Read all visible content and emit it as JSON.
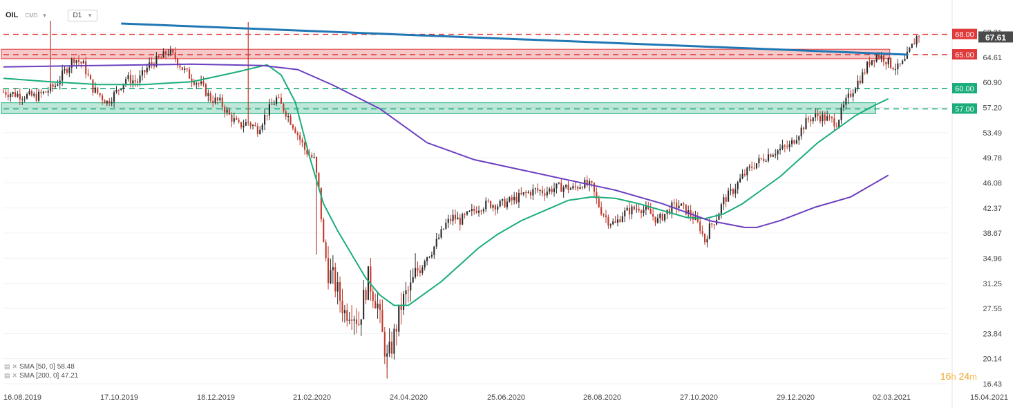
{
  "header": {
    "symbol": "OIL",
    "instrument_type": "CMD",
    "timeframe": "D1"
  },
  "indicators": [
    {
      "label": "SMA [50, 0]",
      "value": "58.48",
      "color": "#1aad7a"
    },
    {
      "label": "SMA [200, 0]",
      "value": "47.21",
      "color": "#6a3fbf"
    }
  ],
  "timer": {
    "hours": "16",
    "h_unit": "h",
    "minutes": "24",
    "m_unit": "m"
  },
  "chart_data": {
    "type": "candlestick",
    "x_tick_labels": [
      "16.08.2019",
      "17.10.2019",
      "18.12.2019",
      "21.02.2020",
      "24.04.2020",
      "25.06.2020",
      "26.08.2020",
      "27.10.2020",
      "29.12.2020",
      "02.03.2021",
      "15.04.2021"
    ],
    "y_tick_labels": [
      "68.31",
      "64.61",
      "60.90",
      "57.20",
      "53.49",
      "49.78",
      "46.08",
      "42.37",
      "38.67",
      "34.96",
      "31.25",
      "27.55",
      "23.84",
      "20.14",
      "16.43"
    ],
    "ylim": [
      16.43,
      69.8
    ],
    "last_price": "67.61",
    "last_price_value": 67.61,
    "price_path": [
      [
        0,
        59.5
      ],
      [
        8,
        59.0
      ],
      [
        14,
        58.8
      ],
      [
        18,
        59.5
      ],
      [
        22,
        60.5
      ],
      [
        26,
        62.5
      ],
      [
        30,
        64.5
      ],
      [
        34,
        63.5
      ],
      [
        38,
        60.0
      ],
      [
        44,
        58.0
      ],
      [
        48,
        59.5
      ],
      [
        52,
        61.5
      ],
      [
        57,
        61.0
      ],
      [
        62,
        63.5
      ],
      [
        67,
        64.5
      ],
      [
        70,
        65.5
      ],
      [
        73,
        64.5
      ],
      [
        76,
        63.0
      ],
      [
        80,
        61.5
      ],
      [
        84,
        60.5
      ],
      [
        88,
        58.5
      ],
      [
        92,
        58.0
      ],
      [
        96,
        56.0
      ],
      [
        100,
        54.5
      ],
      [
        104,
        55.0
      ],
      [
        108,
        54.0
      ],
      [
        112,
        56.5
      ],
      [
        116,
        58.5
      ],
      [
        120,
        56.5
      ],
      [
        124,
        54.0
      ],
      [
        128,
        51.0
      ],
      [
        132,
        49.5
      ],
      [
        134,
        45.0
      ],
      [
        136,
        37.0
      ],
      [
        138,
        33.0
      ],
      [
        140,
        32.0
      ],
      [
        143,
        29.0
      ],
      [
        145,
        27.0
      ],
      [
        148,
        27.5
      ],
      [
        151,
        25.5
      ],
      [
        153,
        29.0
      ],
      [
        155,
        32.0
      ],
      [
        157,
        30.0
      ],
      [
        159,
        28.0
      ],
      [
        161,
        23.5
      ],
      [
        163,
        20.0
      ],
      [
        165,
        22.0
      ],
      [
        167,
        25.0
      ],
      [
        169,
        28.0
      ],
      [
        171,
        29.5
      ],
      [
        173,
        30.5
      ],
      [
        175,
        32.5
      ],
      [
        177,
        34.0
      ],
      [
        179,
        35.0
      ],
      [
        182,
        36.0
      ],
      [
        185,
        38.0
      ],
      [
        188,
        40.0
      ],
      [
        191,
        41.0
      ],
      [
        194,
        40.5
      ],
      [
        198,
        41.5
      ],
      [
        202,
        42.5
      ],
      [
        206,
        43.0
      ],
      [
        210,
        42.8
      ],
      [
        214,
        43.2
      ],
      [
        218,
        43.8
      ],
      [
        222,
        44.5
      ],
      [
        226,
        45.0
      ],
      [
        230,
        44.8
      ],
      [
        234,
        45.3
      ],
      [
        238,
        45.5
      ],
      [
        242,
        45.2
      ],
      [
        246,
        46.0
      ],
      [
        250,
        45.5
      ],
      [
        252,
        43.5
      ],
      [
        254,
        42.0
      ],
      [
        257,
        40.5
      ],
      [
        260,
        40.0
      ],
      [
        263,
        41.5
      ],
      [
        266,
        42.0
      ],
      [
        270,
        42.5
      ],
      [
        274,
        41.8
      ],
      [
        278,
        40.5
      ],
      [
        281,
        41.5
      ],
      [
        284,
        42.5
      ],
      [
        287,
        42.8
      ],
      [
        290,
        42.0
      ],
      [
        293,
        41.0
      ],
      [
        296,
        39.5
      ],
      [
        298,
        37.5
      ],
      [
        300,
        39.5
      ],
      [
        303,
        41.0
      ],
      [
        306,
        43.5
      ],
      [
        310,
        45.0
      ],
      [
        314,
        47.0
      ],
      [
        318,
        48.5
      ],
      [
        322,
        49.5
      ],
      [
        326,
        50.5
      ],
      [
        330,
        51.0
      ],
      [
        334,
        51.5
      ],
      [
        338,
        53.5
      ],
      [
        342,
        55.5
      ],
      [
        346,
        56.0
      ],
      [
        350,
        55.5
      ],
      [
        354,
        55.0
      ],
      [
        358,
        58.0
      ],
      [
        362,
        60.5
      ],
      [
        365,
        62.0
      ],
      [
        368,
        64.0
      ],
      [
        371,
        65.0
      ],
      [
        374,
        64.5
      ],
      [
        377,
        63.5
      ],
      [
        380,
        63.0
      ],
      [
        383,
        64.0
      ],
      [
        385,
        65.5
      ],
      [
        388,
        67.61
      ]
    ],
    "total_bars": 390,
    "series": [
      {
        "name": "SMA [50, 0]",
        "color": "#1aad7a",
        "points": [
          [
            0,
            61.5
          ],
          [
            20,
            61.0
          ],
          [
            40,
            60.6
          ],
          [
            60,
            60.6
          ],
          [
            80,
            61.0
          ],
          [
            100,
            62.5
          ],
          [
            112,
            63.5
          ],
          [
            118,
            62.0
          ],
          [
            124,
            58.0
          ],
          [
            130,
            50.0
          ],
          [
            136,
            43.0
          ],
          [
            142,
            39.0
          ],
          [
            148,
            35.5
          ],
          [
            154,
            32.0
          ],
          [
            160,
            29.5
          ],
          [
            166,
            28.0
          ],
          [
            172,
            28.0
          ],
          [
            178,
            29.5
          ],
          [
            186,
            31.5
          ],
          [
            194,
            34.0
          ],
          [
            202,
            36.5
          ],
          [
            210,
            38.5
          ],
          [
            220,
            40.5
          ],
          [
            230,
            42.0
          ],
          [
            240,
            43.5
          ],
          [
            250,
            44.0
          ],
          [
            260,
            43.8
          ],
          [
            270,
            43.0
          ],
          [
            280,
            42.0
          ],
          [
            290,
            41.0
          ],
          [
            298,
            40.8
          ],
          [
            306,
            41.5
          ],
          [
            314,
            43.0
          ],
          [
            322,
            45.0
          ],
          [
            330,
            47.0
          ],
          [
            338,
            49.5
          ],
          [
            346,
            52.0
          ],
          [
            354,
            54.0
          ],
          [
            362,
            56.0
          ],
          [
            370,
            57.5
          ],
          [
            376,
            58.48
          ]
        ]
      },
      {
        "name": "SMA [200, 0]",
        "color": "#6a3fbf",
        "points": [
          [
            0,
            63.2
          ],
          [
            40,
            63.4
          ],
          [
            80,
            63.6
          ],
          [
            110,
            63.4
          ],
          [
            125,
            62.8
          ],
          [
            140,
            60.5
          ],
          [
            160,
            57.0
          ],
          [
            180,
            52.0
          ],
          [
            200,
            49.5
          ],
          [
            220,
            48.0
          ],
          [
            240,
            46.5
          ],
          [
            260,
            45.0
          ],
          [
            280,
            43.0
          ],
          [
            300,
            40.5
          ],
          [
            315,
            39.5
          ],
          [
            320,
            39.5
          ],
          [
            330,
            40.5
          ],
          [
            345,
            42.5
          ],
          [
            360,
            44.0
          ],
          [
            376,
            47.21
          ]
        ]
      }
    ],
    "h_levels": [
      {
        "value": 68.0,
        "label": "68.00",
        "color": "#e0393a"
      },
      {
        "value": 65.0,
        "label": "65.00",
        "color": "#e0393a"
      },
      {
        "value": 60.0,
        "label": "60.00",
        "color": "#1aad7a"
      },
      {
        "value": 57.0,
        "label": "57.00",
        "color": "#1aad7a"
      }
    ],
    "zones": [
      {
        "from_bar": 0,
        "to_bar": 376,
        "low": 64.4,
        "high": 65.8,
        "color": "#e0393a"
      },
      {
        "from_bar": 0,
        "to_bar": 370,
        "low": 56.3,
        "high": 57.9,
        "color": "#1aad7a"
      }
    ],
    "trendline": {
      "from": [
        50,
        69.6
      ],
      "to": [
        376,
        65.0
      ],
      "color": "#1f77b4"
    },
    "colors": {
      "up": "#2a2a2a",
      "down": "#c0392b",
      "grid": "#f0f0f0",
      "axis_text": "#444",
      "price_tag": "#4a4a4a"
    }
  }
}
